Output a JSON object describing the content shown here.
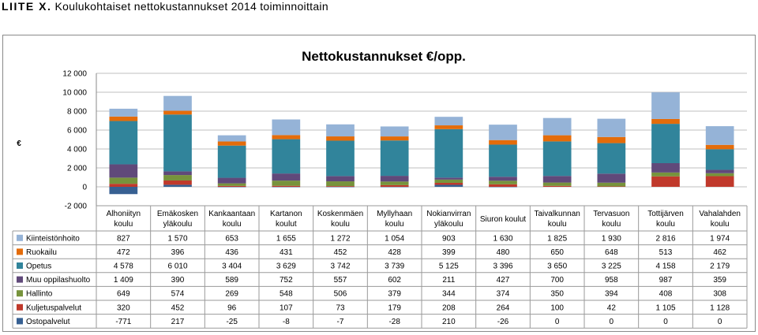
{
  "header": {
    "prefix": "LIITE X.",
    "title": "Koulukohtaiset nettokustannukset 2014 toiminnoittain"
  },
  "chart_data": {
    "type": "bar",
    "stacked": true,
    "title": "Nettokustannukset €/opp.",
    "ylabel": "€",
    "xlabel": "",
    "ylim": [
      -2000,
      12000
    ],
    "yticks": [
      -2000,
      0,
      2000,
      4000,
      6000,
      8000,
      10000,
      12000
    ],
    "ytick_labels": [
      "-2 000",
      "0",
      "2 000",
      "4 000",
      "6 000",
      "8 000",
      "10 000",
      "12 000"
    ],
    "grid": true,
    "legend": "data-table",
    "categories": [
      [
        "Alhoniityn",
        "koulu"
      ],
      [
        "Emäkosken",
        "yläkoulu"
      ],
      [
        "Kankaantaan",
        "koulu"
      ],
      [
        "Kartanon",
        "koulut"
      ],
      [
        "Koskenmäen",
        "koulu"
      ],
      [
        "Myllyhaan",
        "koulu"
      ],
      [
        "Nokianvirran",
        "yläkoulu"
      ],
      [
        "Siuron koulut"
      ],
      [
        "Taivalkunnan",
        "koulu"
      ],
      [
        "Tervasuon",
        "koulu"
      ],
      [
        "Tottijärven",
        "koulu"
      ],
      [
        "Vahalahden",
        "koulu"
      ]
    ],
    "series": [
      {
        "name": "Kiinteistönhoito",
        "color": "#95B3D7",
        "values": [
          827,
          1570,
          653,
          1655,
          1272,
          1054,
          903,
          1630,
          1825,
          1930,
          2816,
          1974
        ],
        "labels": [
          "827",
          "1 570",
          "653",
          "1 655",
          "1 272",
          "1 054",
          "903",
          "1 630",
          "1 825",
          "1 930",
          "2 816",
          "1 974"
        ]
      },
      {
        "name": "Ruokailu",
        "color": "#E46C0A",
        "values": [
          472,
          396,
          436,
          431,
          452,
          428,
          399,
          480,
          650,
          648,
          513,
          462
        ],
        "labels": [
          "472",
          "396",
          "436",
          "431",
          "452",
          "428",
          "399",
          "480",
          "650",
          "648",
          "513",
          "462"
        ]
      },
      {
        "name": "Opetus",
        "color": "#31849B",
        "values": [
          4578,
          6010,
          3404,
          3629,
          3742,
          3739,
          5125,
          3396,
          3650,
          3225,
          4158,
          2179
        ],
        "labels": [
          "4 578",
          "6 010",
          "3 404",
          "3 629",
          "3 742",
          "3 739",
          "5 125",
          "3 396",
          "3 650",
          "3 225",
          "4 158",
          "2 179"
        ]
      },
      {
        "name": "Muu oppilashuolto",
        "color": "#60497A",
        "values": [
          1409,
          390,
          589,
          752,
          557,
          602,
          211,
          427,
          700,
          958,
          987,
          359
        ],
        "labels": [
          "1 409",
          "390",
          "589",
          "752",
          "557",
          "602",
          "211",
          "427",
          "700",
          "958",
          "987",
          "359"
        ]
      },
      {
        "name": "Hallinto",
        "color": "#77933C",
        "values": [
          649,
          574,
          269,
          548,
          506,
          379,
          344,
          374,
          350,
          394,
          408,
          308
        ],
        "labels": [
          "649",
          "574",
          "269",
          "548",
          "506",
          "379",
          "344",
          "374",
          "350",
          "394",
          "408",
          "308"
        ]
      },
      {
        "name": "Kuljetuspalvelut",
        "color": "#C0392B",
        "values": [
          320,
          452,
          96,
          107,
          73,
          179,
          208,
          264,
          100,
          42,
          1105,
          1128
        ],
        "labels": [
          "320",
          "452",
          "96",
          "107",
          "73",
          "179",
          "208",
          "264",
          "100",
          "42",
          "1 105",
          "1 128"
        ]
      },
      {
        "name": "Ostopalvelut",
        "color": "#376092",
        "values": [
          -771,
          217,
          -25,
          -8,
          -7,
          -28,
          210,
          -26,
          0,
          0,
          0,
          0
        ],
        "labels": [
          "-771",
          "217",
          "-25",
          "-8",
          "-7",
          "-28",
          "210",
          "-26",
          "0",
          "0",
          "0",
          "0"
        ]
      }
    ]
  }
}
